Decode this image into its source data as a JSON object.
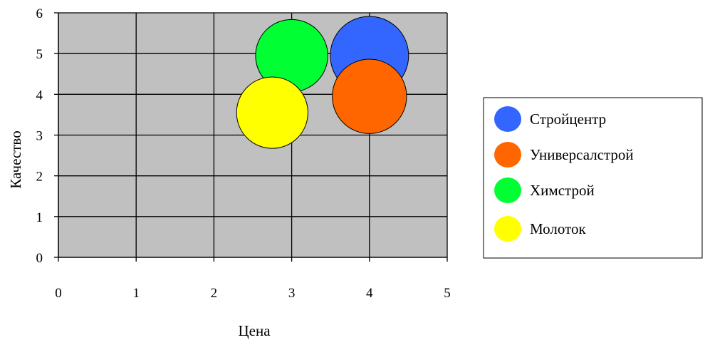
{
  "chart_data": {
    "type": "bubble",
    "title": "",
    "xlabel": "Цена",
    "ylabel": "Качество",
    "xlim": [
      0,
      5
    ],
    "ylim": [
      0,
      6
    ],
    "xticks": [
      "0",
      "1",
      "2",
      "3",
      "4",
      "5"
    ],
    "yticks": [
      "0",
      "1",
      "2",
      "3",
      "4",
      "5",
      "6"
    ],
    "grid": true,
    "plot_background": "#c0c0c0",
    "legend_position": "right",
    "series": [
      {
        "name": "Стройцентр",
        "x": 4.0,
        "y": 4.95,
        "size": 1.0,
        "color": "#3366ff"
      },
      {
        "name": "Универсалстрой",
        "x": 4.0,
        "y": 3.95,
        "size": 0.9,
        "color": "#ff6600"
      },
      {
        "name": "Химстрой",
        "x": 3.0,
        "y": 4.95,
        "size": 0.85,
        "color": "#00ff33"
      },
      {
        "name": "Молоток",
        "x": 2.75,
        "y": 3.55,
        "size": 0.83,
        "color": "#ffff00"
      }
    ]
  }
}
